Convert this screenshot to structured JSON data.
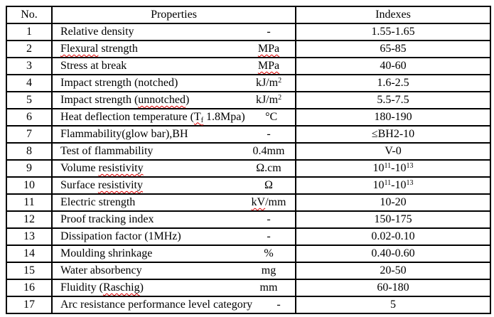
{
  "colors": {
    "border": "#000000",
    "text": "#000000",
    "background": "#ffffff",
    "spellcheck_underline": "#dd0000"
  },
  "table": {
    "headers": {
      "no": "No.",
      "properties": "Properties",
      "indexes": "Indexes"
    },
    "rows": [
      {
        "no": "1",
        "name": [
          {
            "t": "Relative density"
          }
        ],
        "unit": [
          {
            "t": "-"
          }
        ],
        "index": [
          {
            "t": "1.55-1.65"
          }
        ]
      },
      {
        "no": "2",
        "name": [
          {
            "t": "Flexural",
            "s": "wavy"
          },
          {
            "t": " strength"
          }
        ],
        "unit": [
          {
            "t": "MPa",
            "s": "wavy"
          }
        ],
        "index": [
          {
            "t": "65-85"
          }
        ]
      },
      {
        "no": "3",
        "name": [
          {
            "t": "Stress at break"
          }
        ],
        "unit": [
          {
            "t": "MPa",
            "s": "wavy"
          }
        ],
        "index": [
          {
            "t": "40-60"
          }
        ]
      },
      {
        "no": "4",
        "name": [
          {
            "t": "Impact strength (notched)"
          }
        ],
        "unit": [
          {
            "t": "kJ/m"
          },
          {
            "t": "2",
            "s": "sup"
          }
        ],
        "index": [
          {
            "t": "1.6-2.5"
          }
        ]
      },
      {
        "no": "5",
        "name": [
          {
            "t": "Impact strength ("
          },
          {
            "t": "unnotched",
            "s": "wavy"
          },
          {
            "t": ")"
          }
        ],
        "unit": [
          {
            "t": "kJ/m"
          },
          {
            "t": "2",
            "s": "sup"
          }
        ],
        "index": [
          {
            "t": "5.5-7.5"
          }
        ]
      },
      {
        "no": "6",
        "name": [
          {
            "t": "Heat deflection temperature ("
          },
          {
            "t": "T",
            "s": "wavy"
          },
          {
            "t": "f",
            "s": "sub wavy"
          },
          {
            "t": " 1.8Mpa)"
          }
        ],
        "unit": [
          {
            "t": "°C"
          }
        ],
        "index": [
          {
            "t": "180-190"
          }
        ]
      },
      {
        "no": "7",
        "name": [
          {
            "t": "Flammability(glow bar),BH"
          }
        ],
        "unit": [
          {
            "t": "-"
          }
        ],
        "index": [
          {
            "t": "≤BH2-10"
          }
        ]
      },
      {
        "no": "8",
        "name": [
          {
            "t": "Test of flammability"
          }
        ],
        "unit": [
          {
            "t": "0.4mm"
          }
        ],
        "index": [
          {
            "t": "V-0"
          }
        ]
      },
      {
        "no": "9",
        "name": [
          {
            "t": "Volume "
          },
          {
            "t": "resistivity",
            "s": "wavy"
          }
        ],
        "unit": [
          {
            "t": "Ω.cm"
          }
        ],
        "index": [
          {
            "t": "10"
          },
          {
            "t": "11",
            "s": "sup"
          },
          {
            "t": "-10"
          },
          {
            "t": "13",
            "s": "sup"
          }
        ]
      },
      {
        "no": "10",
        "name": [
          {
            "t": "Surface "
          },
          {
            "t": "resistivity",
            "s": "wavy"
          }
        ],
        "unit": [
          {
            "t": "Ω"
          }
        ],
        "index": [
          {
            "t": "10"
          },
          {
            "t": "11",
            "s": "sup"
          },
          {
            "t": "-10"
          },
          {
            "t": "13",
            "s": "sup"
          }
        ]
      },
      {
        "no": "11",
        "name": [
          {
            "t": "Electric strength"
          }
        ],
        "unit": [
          {
            "t": "kV",
            "s": "wavy"
          },
          {
            "t": "/mm"
          }
        ],
        "index": [
          {
            "t": "10-20"
          }
        ]
      },
      {
        "no": "12",
        "name": [
          {
            "t": "Proof tracking index"
          }
        ],
        "unit": [
          {
            "t": "-"
          }
        ],
        "index": [
          {
            "t": "150-175"
          }
        ]
      },
      {
        "no": "13",
        "name": [
          {
            "t": "Dissipation factor (1MHz)"
          }
        ],
        "unit": [
          {
            "t": "-"
          }
        ],
        "index": [
          {
            "t": "0.02-0.10"
          }
        ]
      },
      {
        "no": "14",
        "name": [
          {
            "t": "Moulding shrinkage"
          }
        ],
        "unit": [
          {
            "t": "%"
          }
        ],
        "index": [
          {
            "t": "0.40-0.60"
          }
        ]
      },
      {
        "no": "15",
        "name": [
          {
            "t": "Water absorbency"
          }
        ],
        "unit": [
          {
            "t": "mg"
          }
        ],
        "index": [
          {
            "t": "20-50"
          }
        ]
      },
      {
        "no": "16",
        "name": [
          {
            "t": "Fluidity ("
          },
          {
            "t": "Raschig",
            "s": "wavy"
          },
          {
            "t": ")"
          }
        ],
        "unit": [
          {
            "t": "mm"
          }
        ],
        "index": [
          {
            "t": "60-180"
          }
        ]
      },
      {
        "no": "17",
        "name": [
          {
            "t": "Arc resistance performance level category"
          }
        ],
        "unit": [
          {
            "t": "-"
          }
        ],
        "index": [
          {
            "t": "5"
          }
        ]
      }
    ]
  }
}
